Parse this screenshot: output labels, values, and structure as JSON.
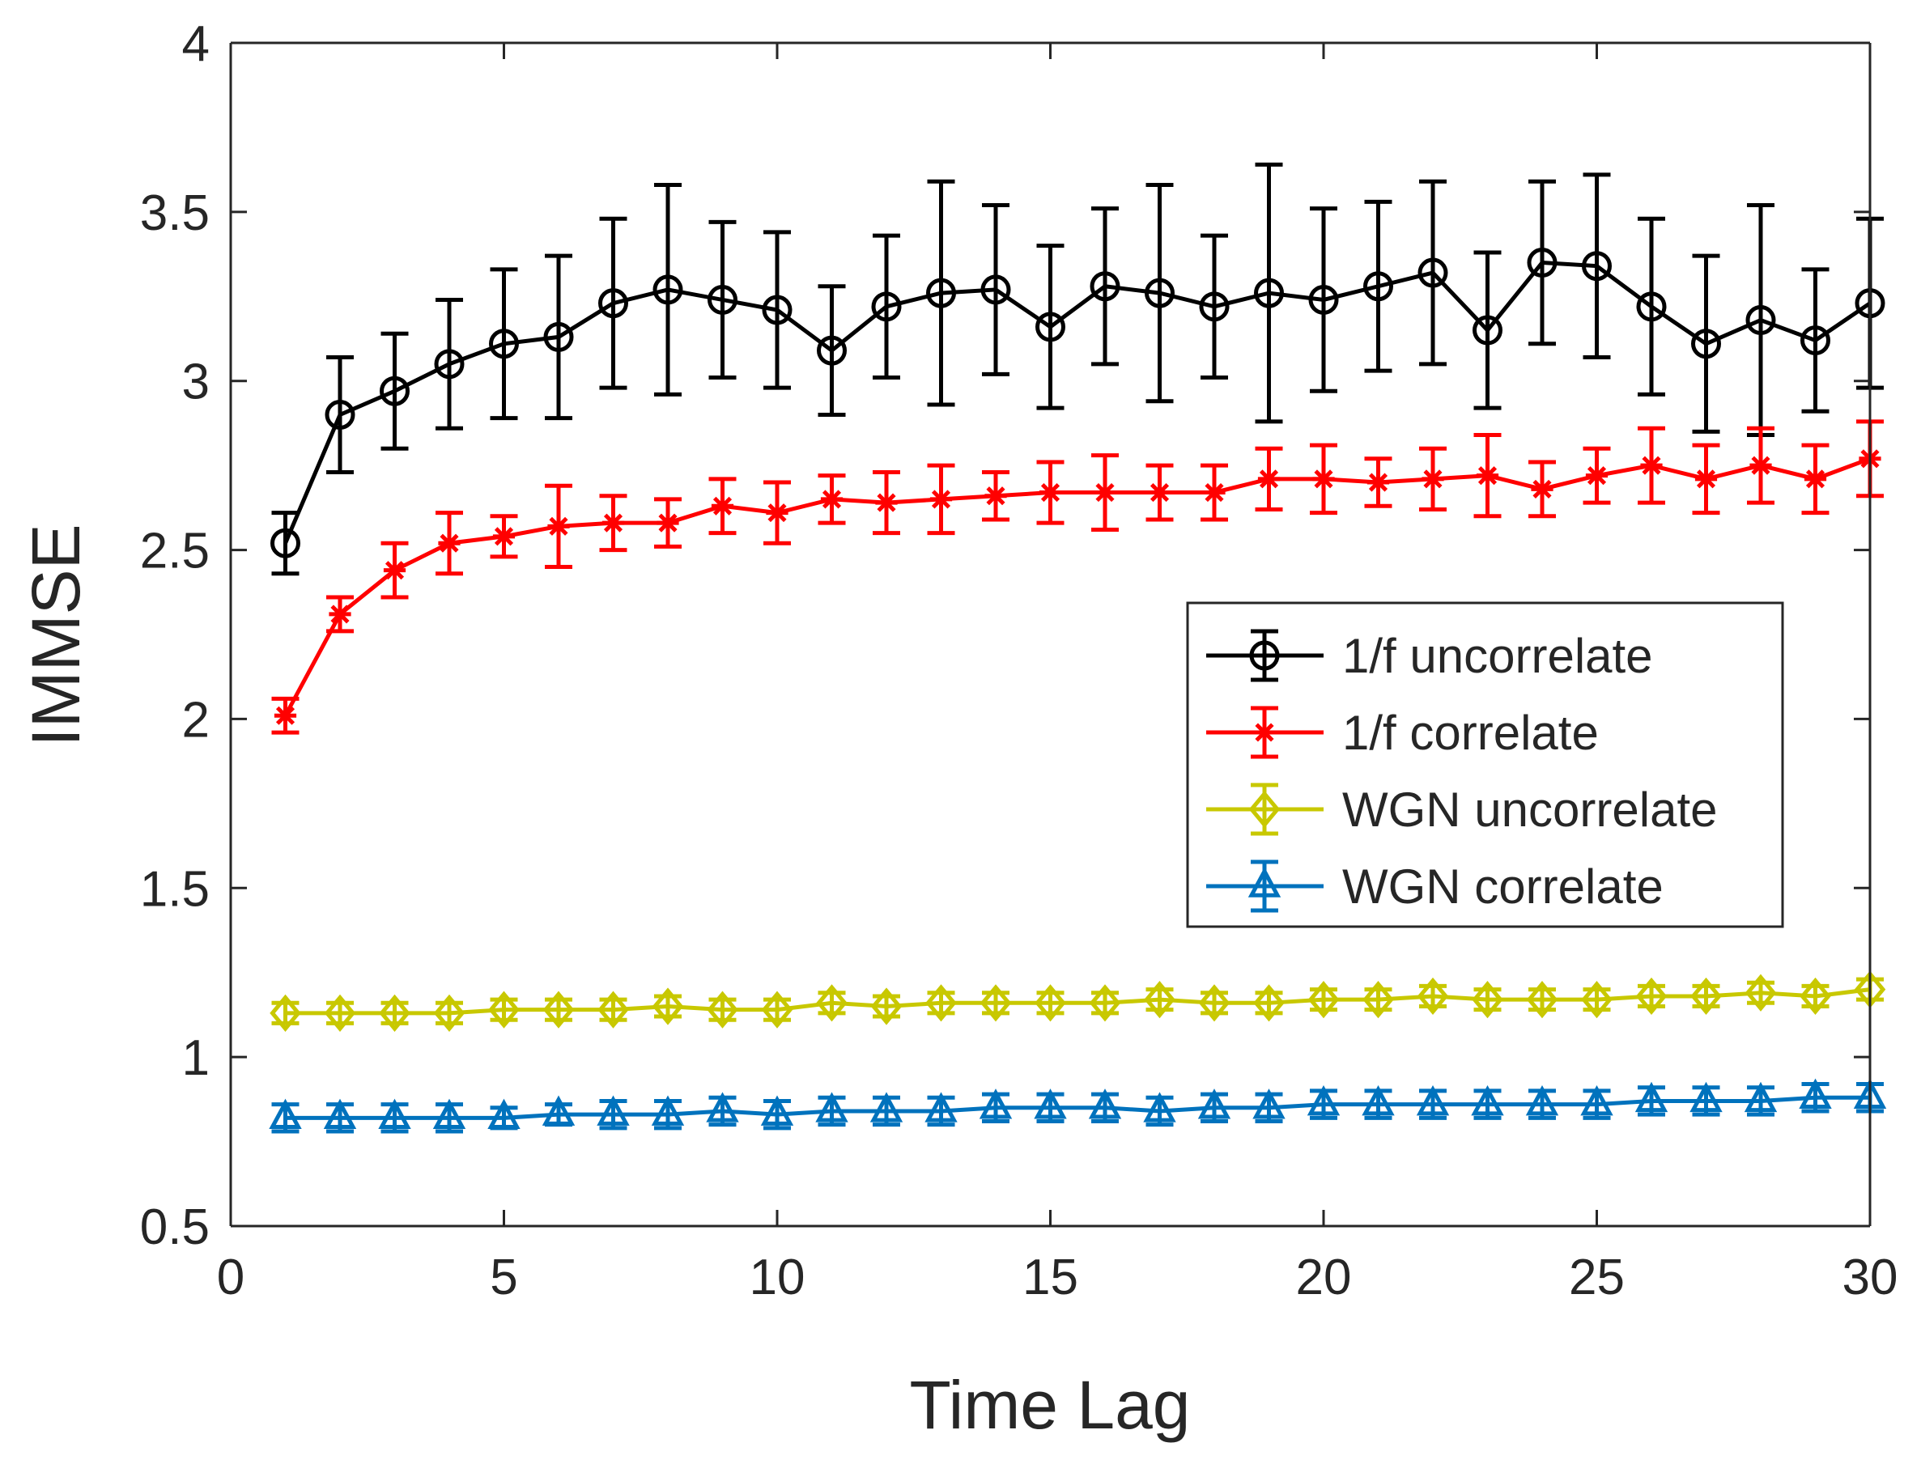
{
  "chart_data": {
    "type": "line",
    "title": "",
    "xlabel": "Time Lag",
    "ylabel": "IMMSE",
    "xlim": [
      0,
      30
    ],
    "ylim": [
      0.5,
      4
    ],
    "xticks": [
      0,
      5,
      10,
      15,
      20,
      25,
      30
    ],
    "xtick_labels": [
      "0",
      "5",
      "10",
      "15",
      "20",
      "25",
      "30"
    ],
    "yticks": [
      0.5,
      1,
      1.5,
      2,
      2.5,
      3,
      3.5,
      4
    ],
    "ytick_labels": [
      "0.5",
      "1",
      "1.5",
      "2",
      "2.5",
      "3",
      "3.5",
      "4"
    ],
    "grid": false,
    "legend_position": "right",
    "x": [
      1,
      2,
      3,
      4,
      5,
      6,
      7,
      8,
      9,
      10,
      11,
      12,
      13,
      14,
      15,
      16,
      17,
      18,
      19,
      20,
      21,
      22,
      23,
      24,
      25,
      26,
      27,
      28,
      29,
      30
    ],
    "series": [
      {
        "name": "1/f uncorrelate",
        "color": "#000000",
        "marker": "circle",
        "values": [
          2.52,
          2.9,
          2.97,
          3.05,
          3.11,
          3.13,
          3.23,
          3.27,
          3.24,
          3.21,
          3.09,
          3.22,
          3.26,
          3.27,
          3.16,
          3.28,
          3.26,
          3.22,
          3.26,
          3.24,
          3.28,
          3.32,
          3.15,
          3.35,
          3.34,
          3.22,
          3.11,
          3.18,
          3.12,
          3.23
        ],
        "errors": [
          0.09,
          0.17,
          0.17,
          0.19,
          0.22,
          0.24,
          0.25,
          0.31,
          0.23,
          0.23,
          0.19,
          0.21,
          0.33,
          0.25,
          0.24,
          0.23,
          0.32,
          0.21,
          0.38,
          0.27,
          0.25,
          0.27,
          0.23,
          0.24,
          0.27,
          0.26,
          0.26,
          0.34,
          0.21,
          0.25
        ]
      },
      {
        "name": "1/f correlate",
        "color": "#ff0000",
        "marker": "star",
        "values": [
          2.01,
          2.31,
          2.44,
          2.52,
          2.54,
          2.57,
          2.58,
          2.58,
          2.63,
          2.61,
          2.65,
          2.64,
          2.65,
          2.66,
          2.67,
          2.67,
          2.67,
          2.67,
          2.71,
          2.71,
          2.7,
          2.71,
          2.72,
          2.68,
          2.72,
          2.75,
          2.71,
          2.75,
          2.71,
          2.77
        ],
        "errors": [
          0.05,
          0.05,
          0.08,
          0.09,
          0.06,
          0.12,
          0.08,
          0.07,
          0.08,
          0.09,
          0.07,
          0.09,
          0.1,
          0.07,
          0.09,
          0.11,
          0.08,
          0.08,
          0.09,
          0.1,
          0.07,
          0.09,
          0.12,
          0.08,
          0.08,
          0.11,
          0.1,
          0.11,
          0.1,
          0.11
        ]
      },
      {
        "name": "WGN uncorrelate",
        "color": "#c8c800",
        "marker": "diamond",
        "values": [
          1.13,
          1.13,
          1.13,
          1.13,
          1.14,
          1.14,
          1.14,
          1.15,
          1.14,
          1.14,
          1.16,
          1.15,
          1.16,
          1.16,
          1.16,
          1.16,
          1.17,
          1.16,
          1.16,
          1.17,
          1.17,
          1.18,
          1.17,
          1.17,
          1.17,
          1.18,
          1.18,
          1.19,
          1.18,
          1.2
        ],
        "errors": [
          0.03,
          0.03,
          0.03,
          0.03,
          0.03,
          0.03,
          0.03,
          0.03,
          0.03,
          0.03,
          0.03,
          0.03,
          0.03,
          0.03,
          0.03,
          0.03,
          0.03,
          0.03,
          0.03,
          0.03,
          0.03,
          0.03,
          0.03,
          0.03,
          0.03,
          0.03,
          0.03,
          0.03,
          0.03,
          0.03
        ]
      },
      {
        "name": "WGN correlate",
        "color": "#0072bd",
        "marker": "triangle",
        "values": [
          0.82,
          0.82,
          0.82,
          0.82,
          0.82,
          0.83,
          0.83,
          0.83,
          0.84,
          0.83,
          0.84,
          0.84,
          0.84,
          0.85,
          0.85,
          0.85,
          0.84,
          0.85,
          0.85,
          0.86,
          0.86,
          0.86,
          0.86,
          0.86,
          0.86,
          0.87,
          0.87,
          0.87,
          0.88,
          0.88
        ],
        "errors": [
          0.04,
          0.04,
          0.04,
          0.04,
          0.03,
          0.03,
          0.04,
          0.04,
          0.04,
          0.04,
          0.04,
          0.04,
          0.04,
          0.04,
          0.04,
          0.04,
          0.04,
          0.04,
          0.04,
          0.04,
          0.04,
          0.04,
          0.04,
          0.04,
          0.04,
          0.04,
          0.04,
          0.04,
          0.04,
          0.04
        ]
      }
    ]
  }
}
